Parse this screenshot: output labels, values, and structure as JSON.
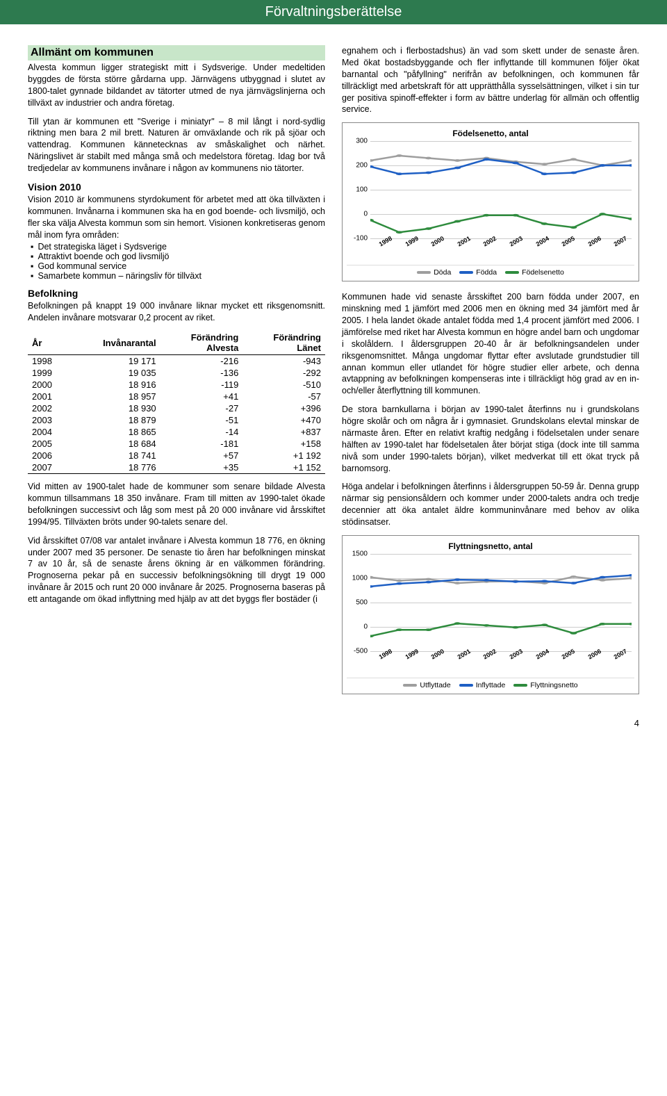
{
  "header": "Förvaltningsberättelse",
  "left": {
    "heading1": "Allmänt om kommunen",
    "p1": "Alvesta kommun ligger strategiskt mitt i Sydsverige. Under medeltiden byggdes de första större gårdarna upp. Järnvägens utbyggnad i slutet av 1800-talet gynnade bildandet av tätorter utmed de nya järnvägslinjerna och tillväxt av industrier och andra företag.",
    "p2": "Till ytan är kommunen ett \"Sverige i miniatyr\" – 8 mil långt i nord-sydlig riktning men bara 2 mil brett. Naturen är omväxlande och rik på sjöar och vattendrag. Kommunen kännetecknas av småskalighet och närhet. Näringslivet är stabilt med många små och medelstora företag. Idag bor två tredjedelar av kommunens invånare i någon av kommunens nio tätorter.",
    "vision_head": "Vision 2010",
    "p3": "Vision 2010 är kommunens styrdokument för arbetet med att öka tillväxten i kommunen. Invånarna i kommunen ska ha en god boende- och livsmiljö, och fler ska välja Alvesta kommun som sin hemort. Visionen konkretiseras genom mål inom fyra områden:",
    "bullets": [
      "Det strategiska läget i Sydsverige",
      "Attraktivt boende och god livsmiljö",
      "God kommunal service",
      "Samarbete kommun – näringsliv för tillväxt"
    ],
    "befolk_head": "Befolkning",
    "p4": "Befolkningen på knappt 19 000 invånare liknar mycket ett riksgenomsnitt. Andelen invånare motsvarar 0,2 procent av riket.",
    "table": {
      "headers": [
        "År",
        "Invånarantal",
        "Förändring Alvesta",
        "Förändring Länet"
      ],
      "rows": [
        [
          "1998",
          "19 171",
          "-216",
          "-943"
        ],
        [
          "1999",
          "19 035",
          "-136",
          "-292"
        ],
        [
          "2000",
          "18 916",
          "-119",
          "-510"
        ],
        [
          "2001",
          "18 957",
          "+41",
          "-57"
        ],
        [
          "2002",
          "18 930",
          "-27",
          "+396"
        ],
        [
          "2003",
          "18 879",
          "-51",
          "+470"
        ],
        [
          "2004",
          "18 865",
          "-14",
          "+837"
        ],
        [
          "2005",
          "18 684",
          "-181",
          "+158"
        ],
        [
          "2006",
          "18 741",
          "+57",
          "+1 192"
        ],
        [
          "2007",
          "18 776",
          "+35",
          "+1 152"
        ]
      ]
    },
    "p5": "Vid mitten av 1900-talet hade de kommuner som senare bildade Alvesta kommun tillsammans 18 350 invånare. Fram till mitten av 1990-talet ökade befolkningen successivt och låg som mest på 20 000 invånare vid årsskiftet 1994/95. Tillväxten bröts under 90-talets senare del.",
    "p6": "Vid årsskiftet 07/08 var antalet invånare i Alvesta kommun 18 776, en ökning under 2007 med 35 personer. De senaste tio åren har befolkningen minskat 7 av 10 år, så de senaste årens ökning är en välkommen förändring. Prognoserna pekar på en successiv befolkningsökning till drygt 19 000 invånare år 2015 och runt 20 000 invånare år 2025. Prognoserna baseras på ett antagande om ökad inflyttning med hjälp av att det byggs fler bostäder (i"
  },
  "right": {
    "p1": "egnahem och i flerbostadshus) än vad som skett under de senaste åren. Med ökat bostadsbyggande och fler inflyttande till kommunen följer ökat barnantal och \"påfyllning\" nerifrån av befolkningen, och kommunen får tillräckligt med arbetskraft för att upprätthålla sysselsättningen, vilket i sin tur ger positiva spinoff-effekter i form av bättre underlag för allmän och offentlig service.",
    "chart1": {
      "title": "Födelsenetto, antal",
      "ymin": -100,
      "ymax": 300,
      "ystep": 100,
      "years": [
        "1998",
        "1999",
        "2000",
        "2001",
        "2002",
        "2003",
        "2004",
        "2005",
        "2006",
        "2007"
      ],
      "series": [
        {
          "name": "Döda",
          "color": "#9e9e9e",
          "values": [
            220,
            240,
            230,
            220,
            230,
            215,
            205,
            225,
            200,
            220
          ]
        },
        {
          "name": "Födda",
          "color": "#1e5fc4",
          "values": [
            195,
            165,
            170,
            190,
            225,
            210,
            165,
            170,
            200,
            200
          ]
        },
        {
          "name": "Födelsenetto",
          "color": "#2e8b3d",
          "values": [
            -25,
            -75,
            -60,
            -30,
            -5,
            -5,
            -40,
            -55,
            0,
            -20
          ]
        }
      ],
      "legend": [
        "Döda",
        "Födda",
        "Födelsenetto"
      ]
    },
    "p2": "Kommunen hade vid senaste årsskiftet 200 barn födda under 2007, en minskning med 1 jämfört med 2006 men en ökning med 34 jämfört med år 2005. I hela landet ökade antalet födda med 1,4 procent jämfört med 2006. I jämförelse med riket har Alvesta kommun en högre andel barn och ungdomar i skolåldern. I åldersgruppen 20-40 år är befolkningsandelen under riksgenomsnittet. Många ungdomar flyttar efter avslutade grundstudier till annan kommun eller utlandet för högre studier eller arbete, och denna avtappning av befolkningen kompenseras inte i tillräckligt hög grad av en in- och/eller återflyttning till kommunen.",
    "p3": "De stora barnkullarna i början av 1990-talet återfinns nu i grundskolans högre skolår och om några år i gymnasiet. Grundskolans elevtal minskar de närmaste åren. Efter en relativt kraftig nedgång i födelsetalen under senare hälften av 1990-talet har födelsetalen åter börjat stiga (dock inte till samma nivå som under 1990-talets början), vilket medverkat till ett ökat tryck på barnomsorg.",
    "p4": "Höga andelar i befolkningen återfinns i åldersgruppen 50-59 år. Denna grupp närmar sig pensionsåldern och kommer under 2000-talets andra och tredje decennier att öka antalet äldre kommuninvånare med behov av olika stödinsatser.",
    "chart2": {
      "title": "Flyttningsnetto, antal",
      "ymin": -500,
      "ymax": 1500,
      "ystep": 500,
      "years": [
        "1998",
        "1999",
        "2000",
        "2001",
        "2002",
        "2003",
        "2004",
        "2005",
        "2006",
        "2007"
      ],
      "series": [
        {
          "name": "Utflyttade",
          "color": "#9e9e9e",
          "values": [
            1020,
            950,
            980,
            900,
            930,
            940,
            900,
            1030,
            960,
            1000
          ]
        },
        {
          "name": "Inflyttade",
          "color": "#1e5fc4",
          "values": [
            830,
            890,
            920,
            970,
            960,
            930,
            940,
            900,
            1020,
            1060
          ]
        },
        {
          "name": "Flyttningsnetto",
          "color": "#2e8b3d",
          "values": [
            -190,
            -60,
            -60,
            70,
            30,
            -10,
            40,
            -130,
            60,
            60
          ]
        }
      ],
      "legend": [
        "Utflyttade",
        "Inflyttade",
        "Flyttningsnetto"
      ]
    }
  },
  "page_num": "4"
}
